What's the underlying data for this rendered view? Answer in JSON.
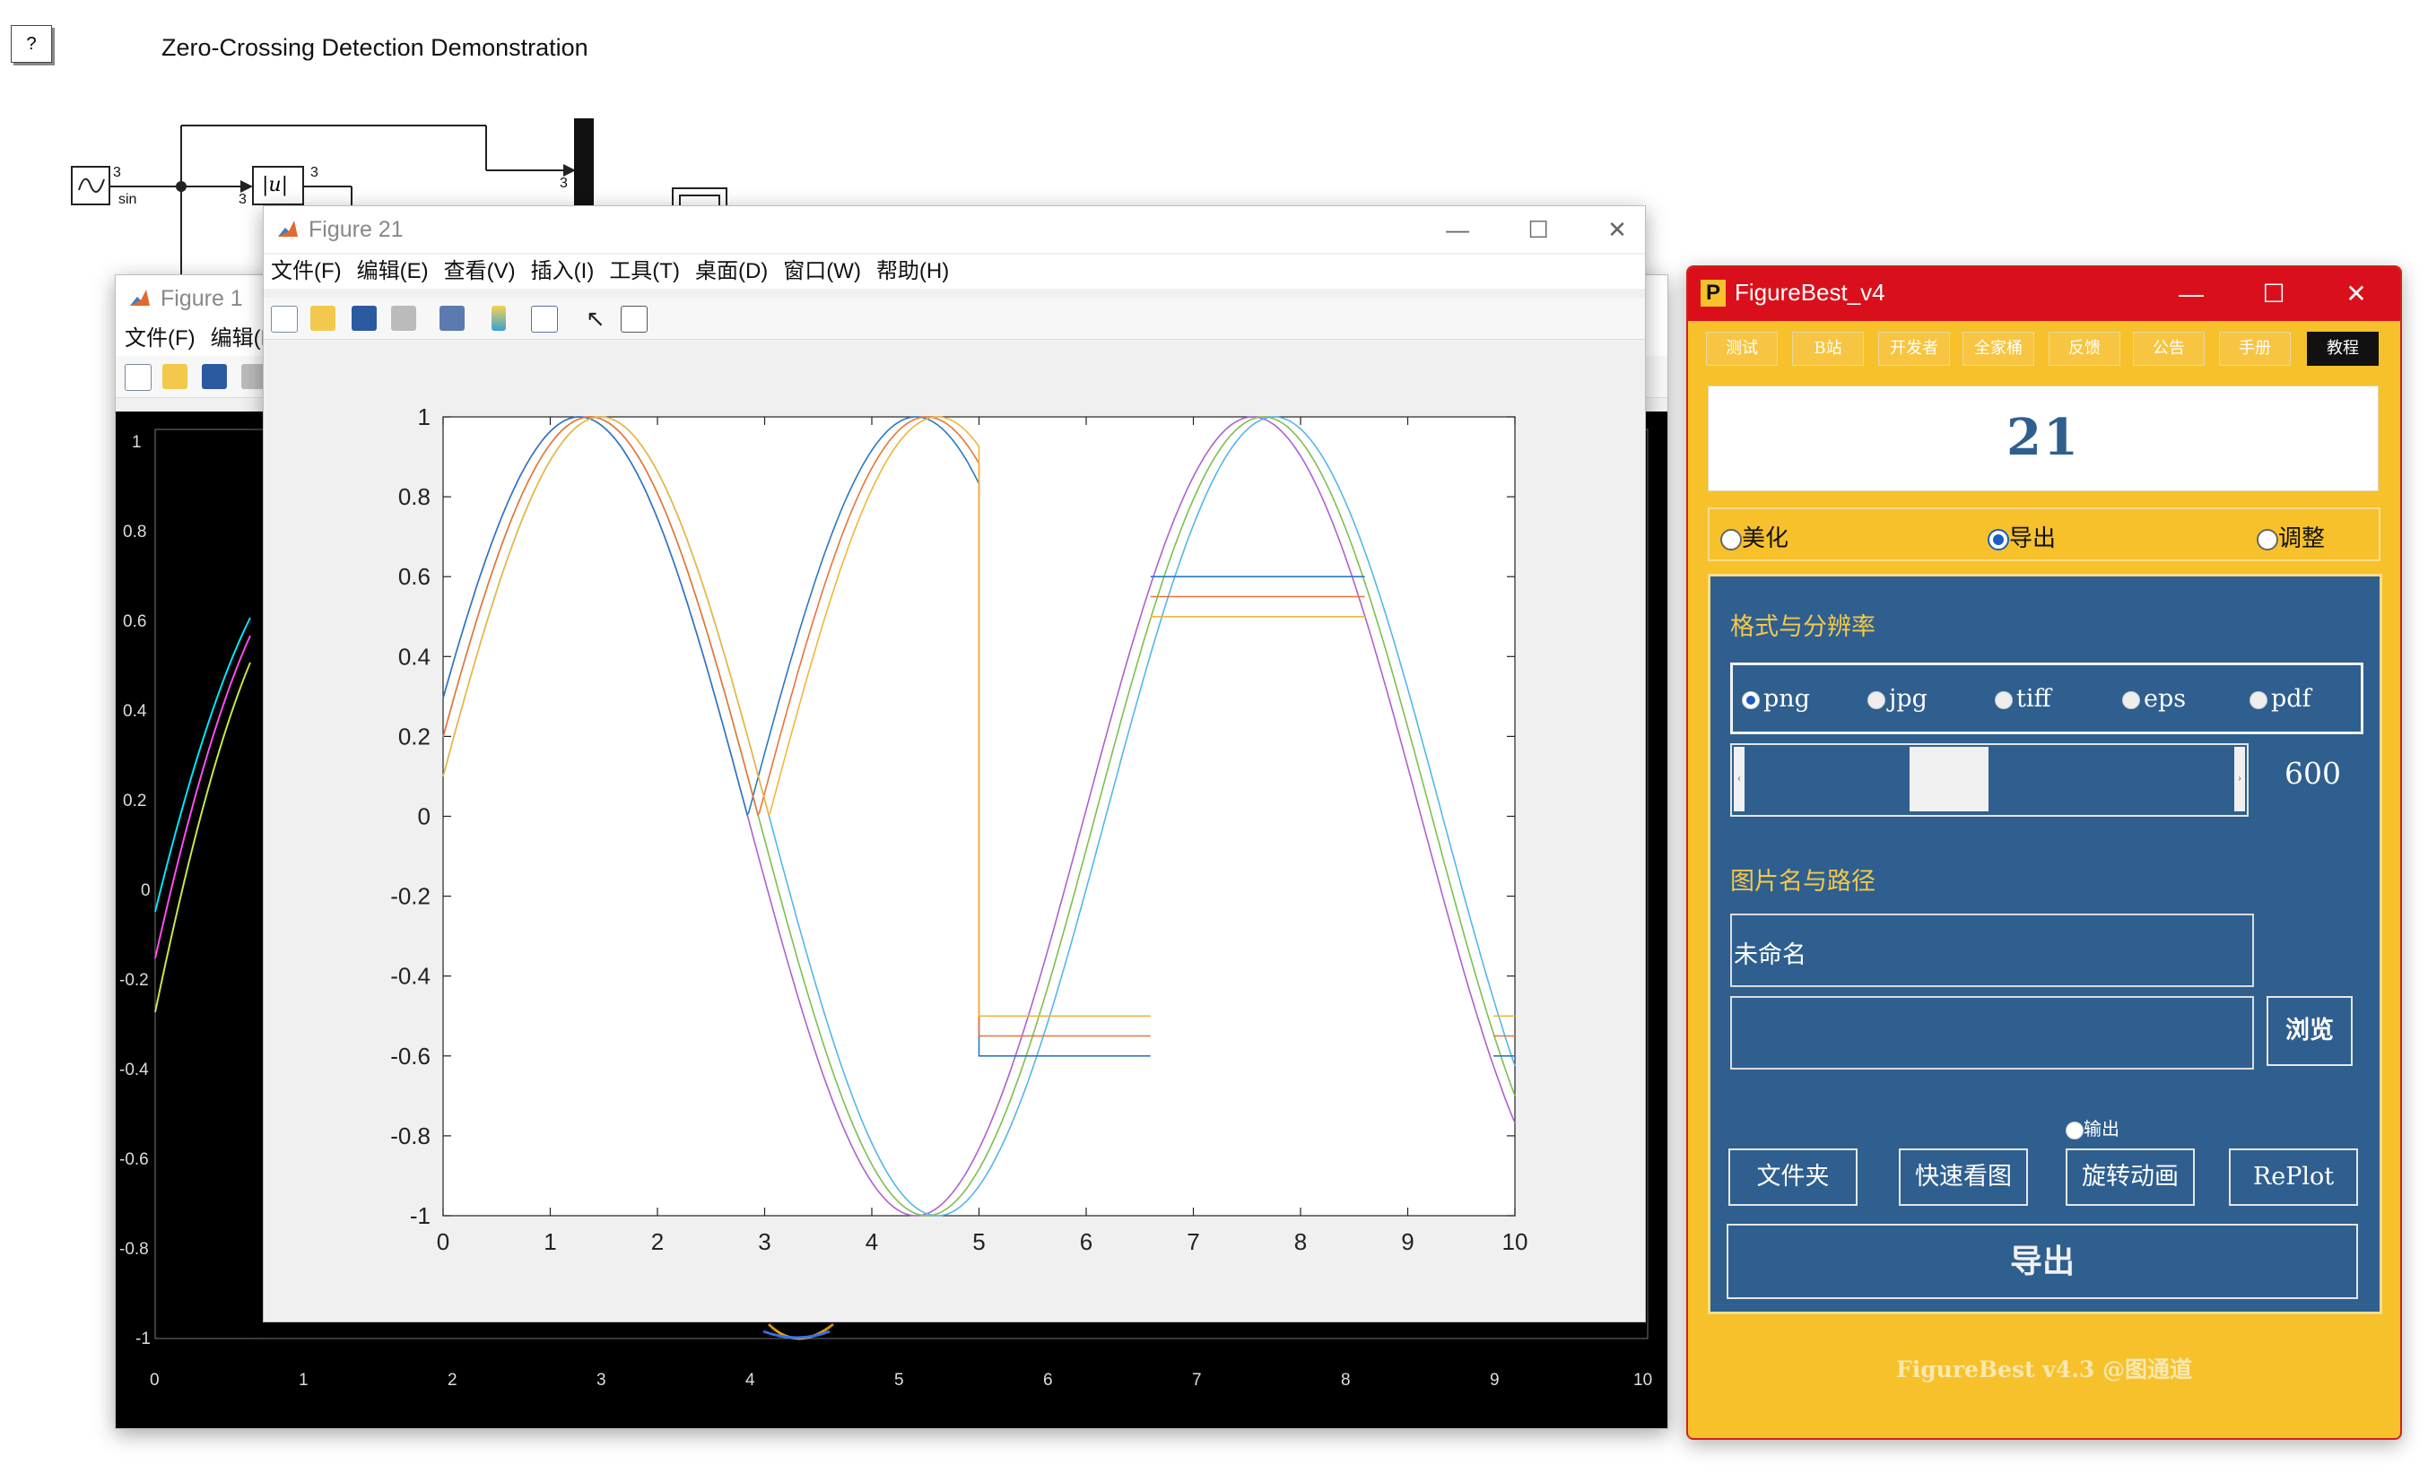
{
  "simulink": {
    "help_label": "?",
    "title": "Zero-Crossing Detection Demonstration",
    "sin_label": "sin",
    "port_3": "3",
    "abs_label": "|u|"
  },
  "figure1": {
    "title": "Figure 1",
    "menu": [
      "文件(F)",
      "编辑(E)"
    ],
    "y_ticks": [
      "1",
      "0.8",
      "0.6",
      "0.4",
      "0.2",
      "0",
      "-0.2",
      "-0.4",
      "-0.6",
      "-0.8",
      "-1"
    ],
    "x_ticks": [
      "0",
      "1",
      "2",
      "3",
      "4",
      "5",
      "6",
      "7",
      "8",
      "9",
      "10"
    ]
  },
  "figure21": {
    "title": "Figure 21",
    "menu": [
      "文件(F)",
      "编辑(E)",
      "查看(V)",
      "插入(I)",
      "工具(T)",
      "桌面(D)",
      "窗口(W)",
      "帮助(H)"
    ],
    "chart_data": {
      "type": "line",
      "x_range": [
        0,
        10
      ],
      "ylim": [
        -1,
        1
      ],
      "x_ticks": [
        "0",
        "1",
        "2",
        "3",
        "4",
        "5",
        "6",
        "7",
        "8",
        "9",
        "10"
      ],
      "y_ticks": [
        "1",
        "0.8",
        "0.6",
        "0.4",
        "0.2",
        "0",
        "-0.2",
        "-0.4",
        "-0.6",
        "-0.8",
        "-1"
      ],
      "grid": false,
      "series": [
        {
          "function": "sin(x+0.3)",
          "color": "#b05fce"
        },
        {
          "function": "sin(x+0.2)",
          "color": "#7dbf4f"
        },
        {
          "function": "sin(x+0.1)",
          "color": "#52b7e8"
        },
        {
          "function": "abs(sin(x+0.3)) for x<=5; switch to -0.6 at x=5; 0.6 between x=6.6 and 8.6",
          "color": "#2a78c4"
        },
        {
          "function": "abs(sin(x+0.2)) for x<=5; switch to -0.55 at x=5; 0.55 between x=6.6 and 8.6",
          "color": "#e8743c"
        },
        {
          "function": "abs(sin(x+0.1)) for x<=5; switch to -0.5 at x=5; 0.5 between x=6.6 and 8.6",
          "color": "#f0b63a"
        }
      ]
    }
  },
  "figurebest": {
    "title": "FigureBest_v4",
    "tabs": [
      "测试",
      "B站",
      "开发者",
      "全家桶",
      "反馈",
      "公告",
      "手册",
      "教程"
    ],
    "active_tab": "教程",
    "display_number": "21",
    "modes": [
      {
        "label": "美化",
        "selected": false
      },
      {
        "label": "导出",
        "selected": true
      },
      {
        "label": "调整",
        "selected": false
      }
    ],
    "format_section": "格式与分辨率",
    "formats": [
      {
        "label": "png",
        "selected": true
      },
      {
        "label": "jpg",
        "selected": false
      },
      {
        "label": "tiff",
        "selected": false
      },
      {
        "label": "eps",
        "selected": false
      },
      {
        "label": "pdf",
        "selected": false
      }
    ],
    "resolution": "600",
    "resolution_slider_fraction": 0.32,
    "name_section": "图片名与路径",
    "filename_value": "未命名",
    "path_value": "",
    "browse_label": "浏览",
    "output_radio_label": "输出",
    "buttons": [
      "文件夹",
      "快速看图",
      "旋转动画",
      "RePlot"
    ],
    "export_label": "导出",
    "footer": "FigureBest v4.3 @图通道"
  }
}
